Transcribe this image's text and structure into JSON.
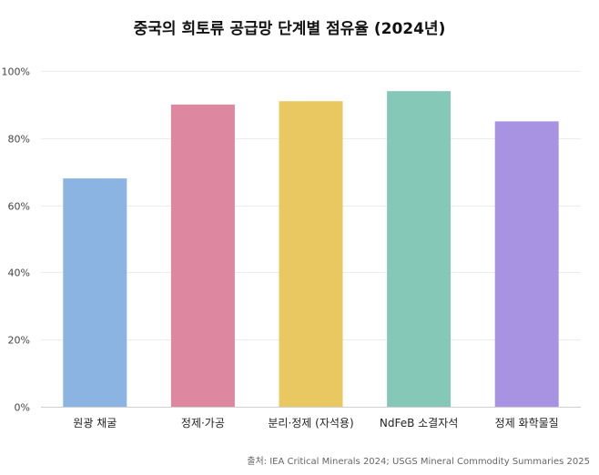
{
  "chart_data": {
    "type": "bar",
    "title": "중국의 희토류 공급망 단계별 점유율 (2024년)",
    "categories": [
      "원광 채굴",
      "정제·가공",
      "분리·정제 (자석용)",
      "NdFeB 소결자석",
      "정제 화학물질"
    ],
    "values": [
      68,
      90,
      91,
      94,
      85
    ],
    "colors": [
      "#8bb4e2",
      "#de87a0",
      "#e9c862",
      "#86c8b8",
      "#a893e2"
    ],
    "ylim": [
      0,
      100
    ],
    "yticks": [
      0,
      20,
      40,
      60,
      80,
      100
    ],
    "ytick_labels": [
      "0%",
      "20%",
      "40%",
      "60%",
      "80%",
      "100%"
    ],
    "xlabel": "",
    "ylabel": "",
    "grid": true,
    "source": "출처: IEA Critical Minerals 2024; USGS Mineral Commodity Summaries 2025"
  }
}
